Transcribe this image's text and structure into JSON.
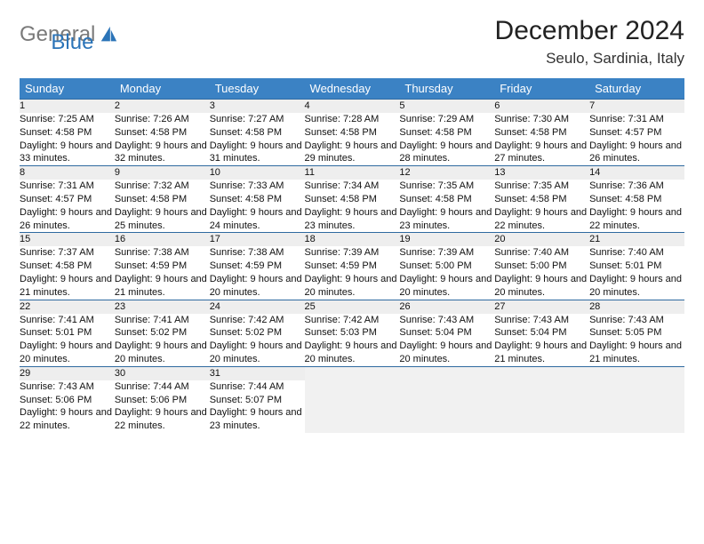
{
  "brand": {
    "part1": "General",
    "part2": "Blue",
    "accent": "#2b74b8",
    "gray": "#7a7a7a"
  },
  "title": "December 2024",
  "location": "Seulo, Sardinia, Italy",
  "colors": {
    "header_bg": "#3b82c4",
    "header_text": "#ffffff",
    "daynum_bg": "#eeeeee",
    "row_border": "#2f6aa0",
    "body_bg": "#ffffff"
  },
  "weekdays": [
    "Sunday",
    "Monday",
    "Tuesday",
    "Wednesday",
    "Thursday",
    "Friday",
    "Saturday"
  ],
  "weeks": [
    [
      {
        "n": 1,
        "sr": "7:25 AM",
        "ss": "4:58 PM",
        "dl": "9 hours and 33 minutes."
      },
      {
        "n": 2,
        "sr": "7:26 AM",
        "ss": "4:58 PM",
        "dl": "9 hours and 32 minutes."
      },
      {
        "n": 3,
        "sr": "7:27 AM",
        "ss": "4:58 PM",
        "dl": "9 hours and 31 minutes."
      },
      {
        "n": 4,
        "sr": "7:28 AM",
        "ss": "4:58 PM",
        "dl": "9 hours and 29 minutes."
      },
      {
        "n": 5,
        "sr": "7:29 AM",
        "ss": "4:58 PM",
        "dl": "9 hours and 28 minutes."
      },
      {
        "n": 6,
        "sr": "7:30 AM",
        "ss": "4:58 PM",
        "dl": "9 hours and 27 minutes."
      },
      {
        "n": 7,
        "sr": "7:31 AM",
        "ss": "4:57 PM",
        "dl": "9 hours and 26 minutes."
      }
    ],
    [
      {
        "n": 8,
        "sr": "7:31 AM",
        "ss": "4:57 PM",
        "dl": "9 hours and 26 minutes."
      },
      {
        "n": 9,
        "sr": "7:32 AM",
        "ss": "4:58 PM",
        "dl": "9 hours and 25 minutes."
      },
      {
        "n": 10,
        "sr": "7:33 AM",
        "ss": "4:58 PM",
        "dl": "9 hours and 24 minutes."
      },
      {
        "n": 11,
        "sr": "7:34 AM",
        "ss": "4:58 PM",
        "dl": "9 hours and 23 minutes."
      },
      {
        "n": 12,
        "sr": "7:35 AM",
        "ss": "4:58 PM",
        "dl": "9 hours and 23 minutes."
      },
      {
        "n": 13,
        "sr": "7:35 AM",
        "ss": "4:58 PM",
        "dl": "9 hours and 22 minutes."
      },
      {
        "n": 14,
        "sr": "7:36 AM",
        "ss": "4:58 PM",
        "dl": "9 hours and 22 minutes."
      }
    ],
    [
      {
        "n": 15,
        "sr": "7:37 AM",
        "ss": "4:58 PM",
        "dl": "9 hours and 21 minutes."
      },
      {
        "n": 16,
        "sr": "7:38 AM",
        "ss": "4:59 PM",
        "dl": "9 hours and 21 minutes."
      },
      {
        "n": 17,
        "sr": "7:38 AM",
        "ss": "4:59 PM",
        "dl": "9 hours and 20 minutes."
      },
      {
        "n": 18,
        "sr": "7:39 AM",
        "ss": "4:59 PM",
        "dl": "9 hours and 20 minutes."
      },
      {
        "n": 19,
        "sr": "7:39 AM",
        "ss": "5:00 PM",
        "dl": "9 hours and 20 minutes."
      },
      {
        "n": 20,
        "sr": "7:40 AM",
        "ss": "5:00 PM",
        "dl": "9 hours and 20 minutes."
      },
      {
        "n": 21,
        "sr": "7:40 AM",
        "ss": "5:01 PM",
        "dl": "9 hours and 20 minutes."
      }
    ],
    [
      {
        "n": 22,
        "sr": "7:41 AM",
        "ss": "5:01 PM",
        "dl": "9 hours and 20 minutes."
      },
      {
        "n": 23,
        "sr": "7:41 AM",
        "ss": "5:02 PM",
        "dl": "9 hours and 20 minutes."
      },
      {
        "n": 24,
        "sr": "7:42 AM",
        "ss": "5:02 PM",
        "dl": "9 hours and 20 minutes."
      },
      {
        "n": 25,
        "sr": "7:42 AM",
        "ss": "5:03 PM",
        "dl": "9 hours and 20 minutes."
      },
      {
        "n": 26,
        "sr": "7:43 AM",
        "ss": "5:04 PM",
        "dl": "9 hours and 20 minutes."
      },
      {
        "n": 27,
        "sr": "7:43 AM",
        "ss": "5:04 PM",
        "dl": "9 hours and 21 minutes."
      },
      {
        "n": 28,
        "sr": "7:43 AM",
        "ss": "5:05 PM",
        "dl": "9 hours and 21 minutes."
      }
    ],
    [
      {
        "n": 29,
        "sr": "7:43 AM",
        "ss": "5:06 PM",
        "dl": "9 hours and 22 minutes."
      },
      {
        "n": 30,
        "sr": "7:44 AM",
        "ss": "5:06 PM",
        "dl": "9 hours and 22 minutes."
      },
      {
        "n": 31,
        "sr": "7:44 AM",
        "ss": "5:07 PM",
        "dl": "9 hours and 23 minutes."
      },
      null,
      null,
      null,
      null
    ]
  ],
  "labels": {
    "sunrise": "Sunrise:",
    "sunset": "Sunset:",
    "daylight": "Daylight:"
  }
}
